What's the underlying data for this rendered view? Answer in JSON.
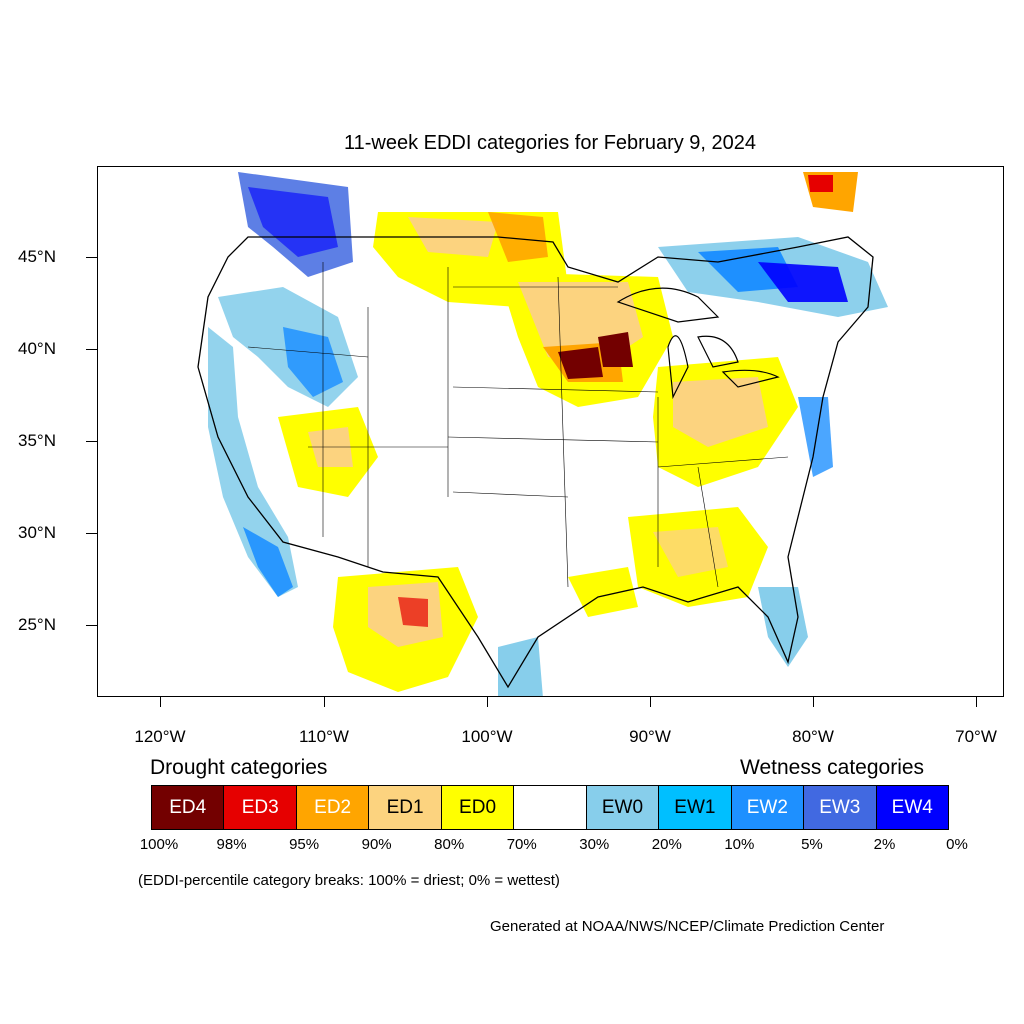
{
  "title": "11-week EDDI categories for February 9, 2024",
  "axes": {
    "lat_labels": [
      "45°N",
      "40°N",
      "35°N",
      "30°N",
      "25°N"
    ],
    "lon_labels": [
      "120°W",
      "110°W",
      "100°W",
      "90°W",
      "80°W",
      "70°W"
    ]
  },
  "legend": {
    "drought_heading": "Drought categories",
    "wetness_heading": "Wetness categories",
    "categories": [
      {
        "label": "ED4",
        "color": "#730000",
        "text_color": "#ffffff"
      },
      {
        "label": "ED3",
        "color": "#e60000",
        "text_color": "#ffffff"
      },
      {
        "label": "ED2",
        "color": "#ffa500",
        "text_color": "#ffffff"
      },
      {
        "label": "ED1",
        "color": "#fcd37f",
        "text_color": "#000000"
      },
      {
        "label": "ED0",
        "color": "#ffff00",
        "text_color": "#000000"
      },
      {
        "label": "",
        "color": "#ffffff",
        "text_color": "#000000"
      },
      {
        "label": "EW0",
        "color": "#87ceeb",
        "text_color": "#000000"
      },
      {
        "label": "EW1",
        "color": "#00bfff",
        "text_color": "#000000"
      },
      {
        "label": "EW2",
        "color": "#1e90ff",
        "text_color": "#ffffff"
      },
      {
        "label": "EW3",
        "color": "#4169e1",
        "text_color": "#ffffff"
      },
      {
        "label": "EW4",
        "color": "#0000ff",
        "text_color": "#ffffff"
      }
    ],
    "percent_breaks": [
      "100%",
      "98%",
      "95%",
      "90%",
      "80%",
      "70%",
      "30%",
      "20%",
      "10%",
      "5%",
      "2%",
      "0%"
    ]
  },
  "note": "(EDDI-percentile category breaks: 100% = driest; 0% = wettest)",
  "credit": "Generated at NOAA/NWS/NCEP/Climate Prediction Center"
}
